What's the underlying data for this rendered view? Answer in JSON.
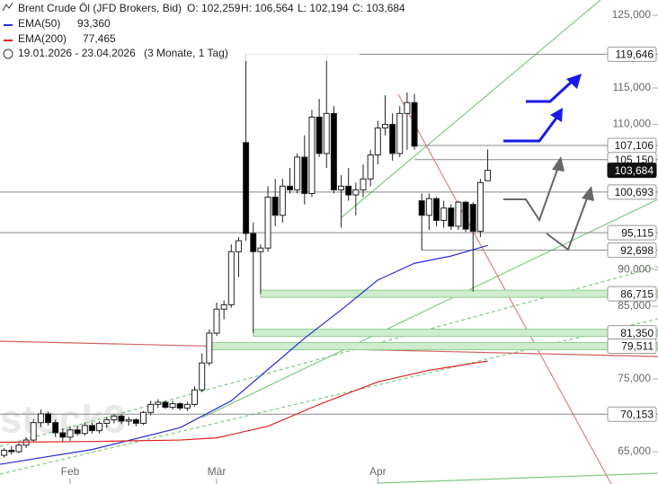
{
  "chart_data": {
    "type": "candlestick",
    "header": {
      "title": "Brent Crude Öl (JFD Brokers, Bid)",
      "open": "O: 102,259",
      "high": "H: 106,564",
      "low": "L: 102,194",
      "close": "C: 103,684",
      "period": "19.01.2026 - 23.04.2026",
      "range": "(3 Monate, 1 Tag)"
    },
    "watermark": "stock3",
    "ylim": [
      60.56,
      127.1
    ],
    "yticks": [
      {
        "value": 125,
        "label": "125,000"
      },
      {
        "value": 115,
        "label": "115,000"
      },
      {
        "value": 110,
        "label": "110,000"
      },
      {
        "value": 90,
        "label": "90,000"
      },
      {
        "value": 85,
        "label": "85,000"
      },
      {
        "value": 75,
        "label": "75,000"
      },
      {
        "value": 65,
        "label": "65,000"
      }
    ],
    "xticks": [
      {
        "value": 10,
        "label": "Feb"
      },
      {
        "value": 30,
        "label": "Mär"
      },
      {
        "value": 52,
        "label": "Apr"
      }
    ],
    "up_color": "#ffffff",
    "down_color": "#000000",
    "candles": [
      [
        64.0,
        64.8,
        63.5,
        64.5
      ],
      [
        64.5,
        65.5,
        64.2,
        65.2
      ],
      [
        65.2,
        65.8,
        64.6,
        65.0
      ],
      [
        65.0,
        66.2,
        64.8,
        65.9
      ],
      [
        65.9,
        67.0,
        65.5,
        66.6
      ],
      [
        66.6,
        69.5,
        66.3,
        69.0
      ],
      [
        69.0,
        70.8,
        68.4,
        70.2
      ],
      [
        70.2,
        70.5,
        68.6,
        69.0
      ],
      [
        69.0,
        69.4,
        67.0,
        67.6
      ],
      [
        67.6,
        68.2,
        66.4,
        67.0
      ],
      [
        67.0,
        68.5,
        66.5,
        68.0
      ],
      [
        68.0,
        68.6,
        67.2,
        67.5
      ],
      [
        67.5,
        69.0,
        67.2,
        68.6
      ],
      [
        68.6,
        69.0,
        67.5,
        67.9
      ],
      [
        67.9,
        69.2,
        67.5,
        68.9
      ],
      [
        68.9,
        69.8,
        68.3,
        69.4
      ],
      [
        69.4,
        70.2,
        68.9,
        69.9
      ],
      [
        69.9,
        70.1,
        68.8,
        69.2
      ],
      [
        69.2,
        69.8,
        68.6,
        69.4
      ],
      [
        69.4,
        69.6,
        68.5,
        68.9
      ],
      [
        68.9,
        70.6,
        68.7,
        70.4
      ],
      [
        70.4,
        72.0,
        70.0,
        71.5
      ],
      [
        71.5,
        72.2,
        71.0,
        71.8
      ],
      [
        71.8,
        72.0,
        70.9,
        71.1
      ],
      [
        71.1,
        72.0,
        70.8,
        71.6
      ],
      [
        71.6,
        71.8,
        70.7,
        71.0
      ],
      [
        71.0,
        71.9,
        70.6,
        71.5
      ],
      [
        71.5,
        74.0,
        71.2,
        73.5
      ],
      [
        73.5,
        78.5,
        73.2,
        77.2
      ],
      [
        77.2,
        81.8,
        76.8,
        81.3
      ],
      [
        81.3,
        85.5,
        80.9,
        84.6
      ],
      [
        84.6,
        85.8,
        83.2,
        85.2
      ],
      [
        85.2,
        93.5,
        84.8,
        92.5
      ],
      [
        92.5,
        94.5,
        89.0,
        94.0
      ],
      [
        107.5,
        119.646,
        94.0,
        95.0
      ],
      [
        95.0,
        96.5,
        81.35,
        92.5
      ],
      [
        92.5,
        93.5,
        86.715,
        93.0
      ],
      [
        93.0,
        101.5,
        92.5,
        100.0
      ],
      [
        100.0,
        102.5,
        96.0,
        97.5
      ],
      [
        97.5,
        102.5,
        96.5,
        101.5
      ],
      [
        101.5,
        104.0,
        100.5,
        101.0
      ],
      [
        101.0,
        106.0,
        100.5,
        105.5
      ],
      [
        105.5,
        108.5,
        99.0,
        100.5
      ],
      [
        100.5,
        112.0,
        100.0,
        111.0
      ],
      [
        111.0,
        113.5,
        105.5,
        106.0
      ],
      [
        106.0,
        119.5,
        104.0,
        111.5
      ],
      [
        111.5,
        112.5,
        100.5,
        101.0
      ],
      [
        101.0,
        103.0,
        95.8,
        101.5
      ],
      [
        101.5,
        104.0,
        99.5,
        100.3
      ],
      [
        100.3,
        102.0,
        97.5,
        101.0
      ],
      [
        101.0,
        104.5,
        100.0,
        102.5
      ],
      [
        102.5,
        106.5,
        101.5,
        105.8
      ],
      [
        105.8,
        110.5,
        104.5,
        109.5
      ],
      [
        109.5,
        114.0,
        108.5,
        110.0
      ],
      [
        110.0,
        111.5,
        105.0,
        106.0
      ],
      [
        106.0,
        112.5,
        105.5,
        111.5
      ],
      [
        111.5,
        114.4,
        106.5,
        113.0
      ],
      [
        113.0,
        114.2,
        106.5,
        107.0
      ],
      [
        99.5,
        100.5,
        92.698,
        97.5
      ],
      [
        97.5,
        100.5,
        95.5,
        99.8
      ],
      [
        99.8,
        100.0,
        96.0,
        96.8
      ],
      [
        96.8,
        99.5,
        95.8,
        98.5
      ],
      [
        98.5,
        99.0,
        95.5,
        96.0
      ],
      [
        96.0,
        99.5,
        95.5,
        99.3
      ],
      [
        99.3,
        99.5,
        95.2,
        95.6
      ],
      [
        99.0,
        99.3,
        87.0,
        95.3
      ],
      [
        95.3,
        102.5,
        94.5,
        102.0
      ],
      [
        102.259,
        106.564,
        102.194,
        103.684
      ]
    ],
    "series": [
      {
        "name": "EMA(50)",
        "value_label": "93,360",
        "color": "#2b2bd6",
        "x": [
          0,
          13,
          25,
          32,
          37,
          42,
          47,
          52,
          57,
          62,
          67
        ],
        "values": [
          63.2,
          65.3,
          68.3,
          72.0,
          76.3,
          80.6,
          84.5,
          88.6,
          90.9,
          91.9,
          93.36
        ]
      },
      {
        "name": "EMA(200)",
        "value_label": "77,465",
        "color": "#e02020",
        "x": [
          0,
          13,
          25,
          30,
          37,
          44,
          52,
          59,
          67
        ],
        "values": [
          66.3,
          66.4,
          66.6,
          66.9,
          68.5,
          71.5,
          74.6,
          76.2,
          77.465
        ]
      }
    ],
    "levels": [
      {
        "value": 119.646,
        "label": "119,646",
        "from": 34,
        "style": "line"
      },
      {
        "value": 107.106,
        "label": "107,106",
        "from": 57,
        "style": "line"
      },
      {
        "value": 105.15,
        "label": "105,150",
        "from": 57,
        "style": "line"
      },
      {
        "value": 103.684,
        "label": "103,684",
        "style": "current"
      },
      {
        "value": 100.693,
        "label": "100,693",
        "from": 0,
        "style": "line"
      },
      {
        "value": 95.115,
        "label": "95,115",
        "from": 0,
        "style": "line"
      },
      {
        "value": 92.698,
        "label": "92,698",
        "from": 58,
        "style": "line"
      },
      {
        "value": 86.715,
        "label": "86,715",
        "from": 36,
        "style": "band"
      },
      {
        "value": 81.35,
        "label": "81,350",
        "from": 35,
        "style": "band"
      },
      {
        "value": 79.511,
        "label": "79,511",
        "from": 29,
        "style": "band"
      },
      {
        "value": 70.153,
        "label": "70,153",
        "from": 0,
        "style": "line"
      }
    ]
  }
}
